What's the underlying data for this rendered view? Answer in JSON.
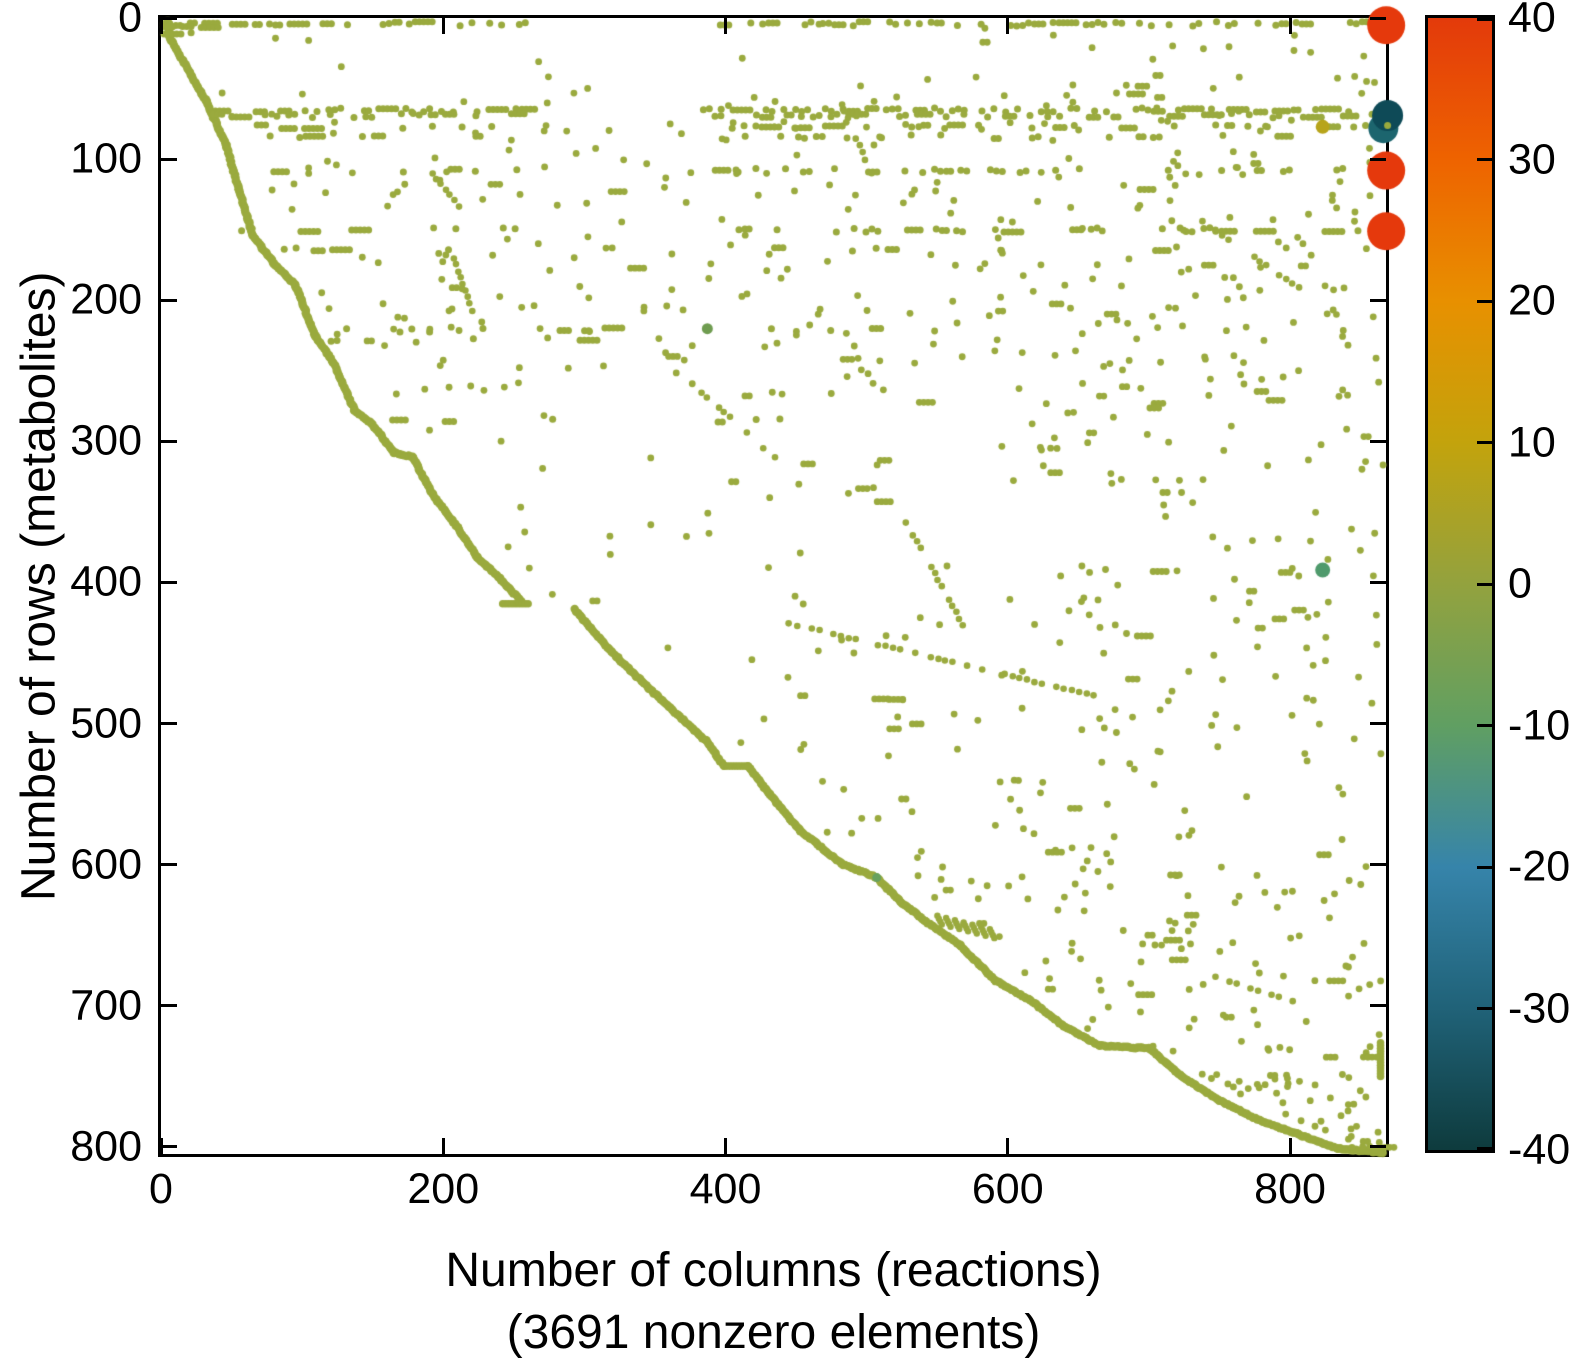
{
  "figure": {
    "xlabel_line1": "Number of columns (reactions)",
    "xlabel_line2": "(3691 nonzero elements)",
    "ylabel": "Number of rows (metabolites)",
    "nonzero_elements": 3691,
    "background": "#ffffff",
    "axis_color": "#000000"
  },
  "chart_data": {
    "type": "scatter",
    "subtype": "sparse-matrix-spy",
    "xlabel": "Number of columns (reactions)",
    "xlabel2": "(3691 nonzero elements)",
    "ylabel": "Number of rows (metabolites)",
    "x_ticks": [
      0,
      200,
      400,
      600,
      800
    ],
    "y_ticks": [
      0,
      100,
      200,
      300,
      400,
      500,
      600,
      700,
      800
    ],
    "xlim": [
      0,
      868
    ],
    "ylim": [
      0,
      805
    ],
    "y_axis_reversed": true,
    "grid": false,
    "dot_color": "#9aaa3e",
    "dot_radius": 3.5,
    "seed": 1234,
    "diagonal_segments": [
      [
        [
          3,
          0
        ],
        [
          4,
          12
        ],
        [
          30,
          57
        ],
        [
          44,
          88
        ],
        [
          53,
          119
        ],
        [
          63,
          152
        ],
        [
          78,
          172
        ],
        [
          93,
          187
        ],
        [
          107,
          223
        ],
        [
          120,
          242
        ],
        [
          135,
          276
        ],
        [
          147,
          285
        ],
        [
          163,
          306
        ],
        [
          176,
          309
        ],
        [
          190,
          335
        ],
        [
          208,
          359
        ],
        [
          222,
          380
        ],
        [
          238,
          395
        ],
        [
          254,
          412
        ]
      ],
      [
        [
          291,
          417
        ],
        [
          317,
          447
        ],
        [
          346,
          475
        ],
        [
          384,
          510
        ],
        [
          397,
          528
        ]
      ],
      [
        [
          414,
          528
        ],
        [
          429,
          548
        ],
        [
          451,
          574
        ],
        [
          480,
          597
        ],
        [
          505,
          607
        ],
        [
          522,
          624
        ],
        [
          540,
          638
        ],
        [
          564,
          655
        ],
        [
          589,
          680
        ],
        [
          614,
          694
        ],
        [
          637,
          712
        ],
        [
          663,
          726
        ],
        [
          698,
          728
        ],
        [
          720,
          747
        ],
        [
          748,
          765
        ],
        [
          776,
          779
        ],
        [
          804,
          789
        ],
        [
          832,
          799
        ],
        [
          864,
          802
        ]
      ]
    ],
    "shelf_runs": [
      {
        "a": [
          240,
          413
        ],
        "b": [
          258,
          413
        ]
      },
      {
        "a": [
          397,
          528
        ],
        "b": [
          414,
          528
        ]
      },
      {
        "a": [
          862,
          724
        ],
        "b": [
          862,
          748
        ]
      }
    ],
    "bands": [
      {
        "y": 2,
        "segments": [
          [
            0,
            36,
            1.0
          ],
          [
            40,
            262,
            0.5
          ],
          [
            390,
            866,
            0.55
          ]
        ]
      },
      {
        "y": 5,
        "segments": [
          [
            0,
            36,
            0.9
          ]
        ]
      },
      {
        "y": 8,
        "segments": [
          [
            0,
            28,
            0.5
          ]
        ]
      },
      {
        "y": 63,
        "segments": [
          [
            28,
            262,
            0.5
          ],
          [
            378,
            866,
            0.55
          ]
        ]
      },
      {
        "y": 67,
        "segments": [
          [
            35,
            258,
            0.35
          ],
          [
            382,
            862,
            0.4
          ]
        ]
      },
      {
        "y": 75,
        "segments": [
          [
            45,
            255,
            0.2
          ],
          [
            390,
            855,
            0.22
          ]
        ]
      },
      {
        "y": 82,
        "segments": [
          [
            50,
            248,
            0.12
          ],
          [
            395,
            850,
            0.15
          ]
        ]
      },
      {
        "y": 106,
        "segments": [
          [
            40,
            258,
            0.25
          ],
          [
            378,
            864,
            0.3
          ]
        ]
      },
      {
        "y": 148,
        "segments": [
          [
            55,
            255,
            0.22
          ],
          [
            378,
            862,
            0.28
          ]
        ]
      },
      {
        "y": 162,
        "segments": [
          [
            60,
            250,
            0.1
          ],
          [
            420,
            820,
            0.1
          ]
        ]
      },
      {
        "y": 219,
        "segments": [
          [
            100,
            360,
            0.16
          ],
          [
            380,
            520,
            0.12
          ]
        ]
      },
      {
        "y": 226,
        "segments": [
          [
            110,
            340,
            0.1
          ]
        ]
      },
      {
        "y": 283,
        "segments": [
          [
            120,
            360,
            0.08
          ],
          [
            380,
            480,
            0.06
          ]
        ]
      }
    ],
    "dotted_diagonals": [
      {
        "a": [
          443,
          427
        ],
        "b": [
          659,
          478
        ],
        "p": 0.75
      },
      {
        "a": [
          480,
          59
        ],
        "b": [
          501,
          108
        ],
        "p": 0.8
      },
      {
        "a": [
          526,
          355
        ],
        "b": [
          566,
          428
        ],
        "p": 0.8
      },
      {
        "a": [
          727,
          136
        ],
        "b": [
          840,
          214
        ],
        "p": 0.6
      },
      {
        "a": [
          381,
          263
        ],
        "b": [
          437,
          313
        ],
        "p": 0.55
      },
      {
        "a": [
          190,
          108
        ],
        "b": [
          212,
          135
        ],
        "p": 0.9
      },
      {
        "a": [
          205,
          168
        ],
        "b": [
          218,
          205
        ],
        "p": 0.8
      },
      {
        "a": [
          740,
          676
        ],
        "b": [
          800,
          695
        ],
        "p": 0.7
      }
    ],
    "sawtooth": {
      "x": 548,
      "y": 634,
      "n": 7,
      "dx": 6.2,
      "dy": 1.6,
      "len": 7
    },
    "random_scatter": {
      "singles": 400,
      "top_extra": 170,
      "right_extra": 140,
      "h_runs": 70,
      "top_band": [
        50,
        265
      ],
      "right_band": [
        580,
        866
      ]
    },
    "special_points": [
      {
        "x": 866,
        "y": 3,
        "r": 19,
        "color": "#e5390c",
        "value_sign": "strong-positive"
      },
      {
        "x": 864,
        "y": 76,
        "r": 15,
        "color": "#1c656e",
        "value_sign": "strong-negative"
      },
      {
        "x": 867,
        "y": 67,
        "r": 15.5,
        "color": "#0e4a57",
        "value_sign": "strong-negative"
      },
      {
        "x": 867,
        "y": 74,
        "r": 3.5,
        "color": "#9aaa3e",
        "value_sign": "near-zero"
      },
      {
        "x": 866,
        "y": 106,
        "r": 19,
        "color": "#e5390c",
        "value_sign": "strong-positive"
      },
      {
        "x": 866,
        "y": 149,
        "r": 19,
        "color": "#e5390c",
        "value_sign": "strong-positive"
      },
      {
        "x": 821,
        "y": 75,
        "r": 7,
        "color": "#b7a41a",
        "value_sign": "positive"
      },
      {
        "x": 821,
        "y": 389,
        "r": 7.5,
        "color": "#4f9a6c",
        "value_sign": "negative"
      },
      {
        "x": 385,
        "y": 218,
        "r": 5.5,
        "color": "#6f9c50",
        "value_sign": "negative"
      },
      {
        "x": 505,
        "y": 607,
        "r": 4.5,
        "color": "#68a15e",
        "value_sign": "negative"
      }
    ]
  },
  "colorbar": {
    "min": -40,
    "max": 40,
    "ticks": [
      40,
      30,
      20,
      10,
      0,
      -10,
      -20,
      -30,
      -40
    ],
    "stops": [
      {
        "v": 40,
        "c": "#e33a0b"
      },
      {
        "v": 30,
        "c": "#ee6300"
      },
      {
        "v": 20,
        "c": "#e89000"
      },
      {
        "v": 10,
        "c": "#c3a30c"
      },
      {
        "v": 0,
        "c": "#93a23e"
      },
      {
        "v": -10,
        "c": "#609f62"
      },
      {
        "v": -20,
        "c": "#3684aa"
      },
      {
        "v": -30,
        "c": "#206278"
      },
      {
        "v": -40,
        "c": "#0e3b3d"
      }
    ]
  }
}
